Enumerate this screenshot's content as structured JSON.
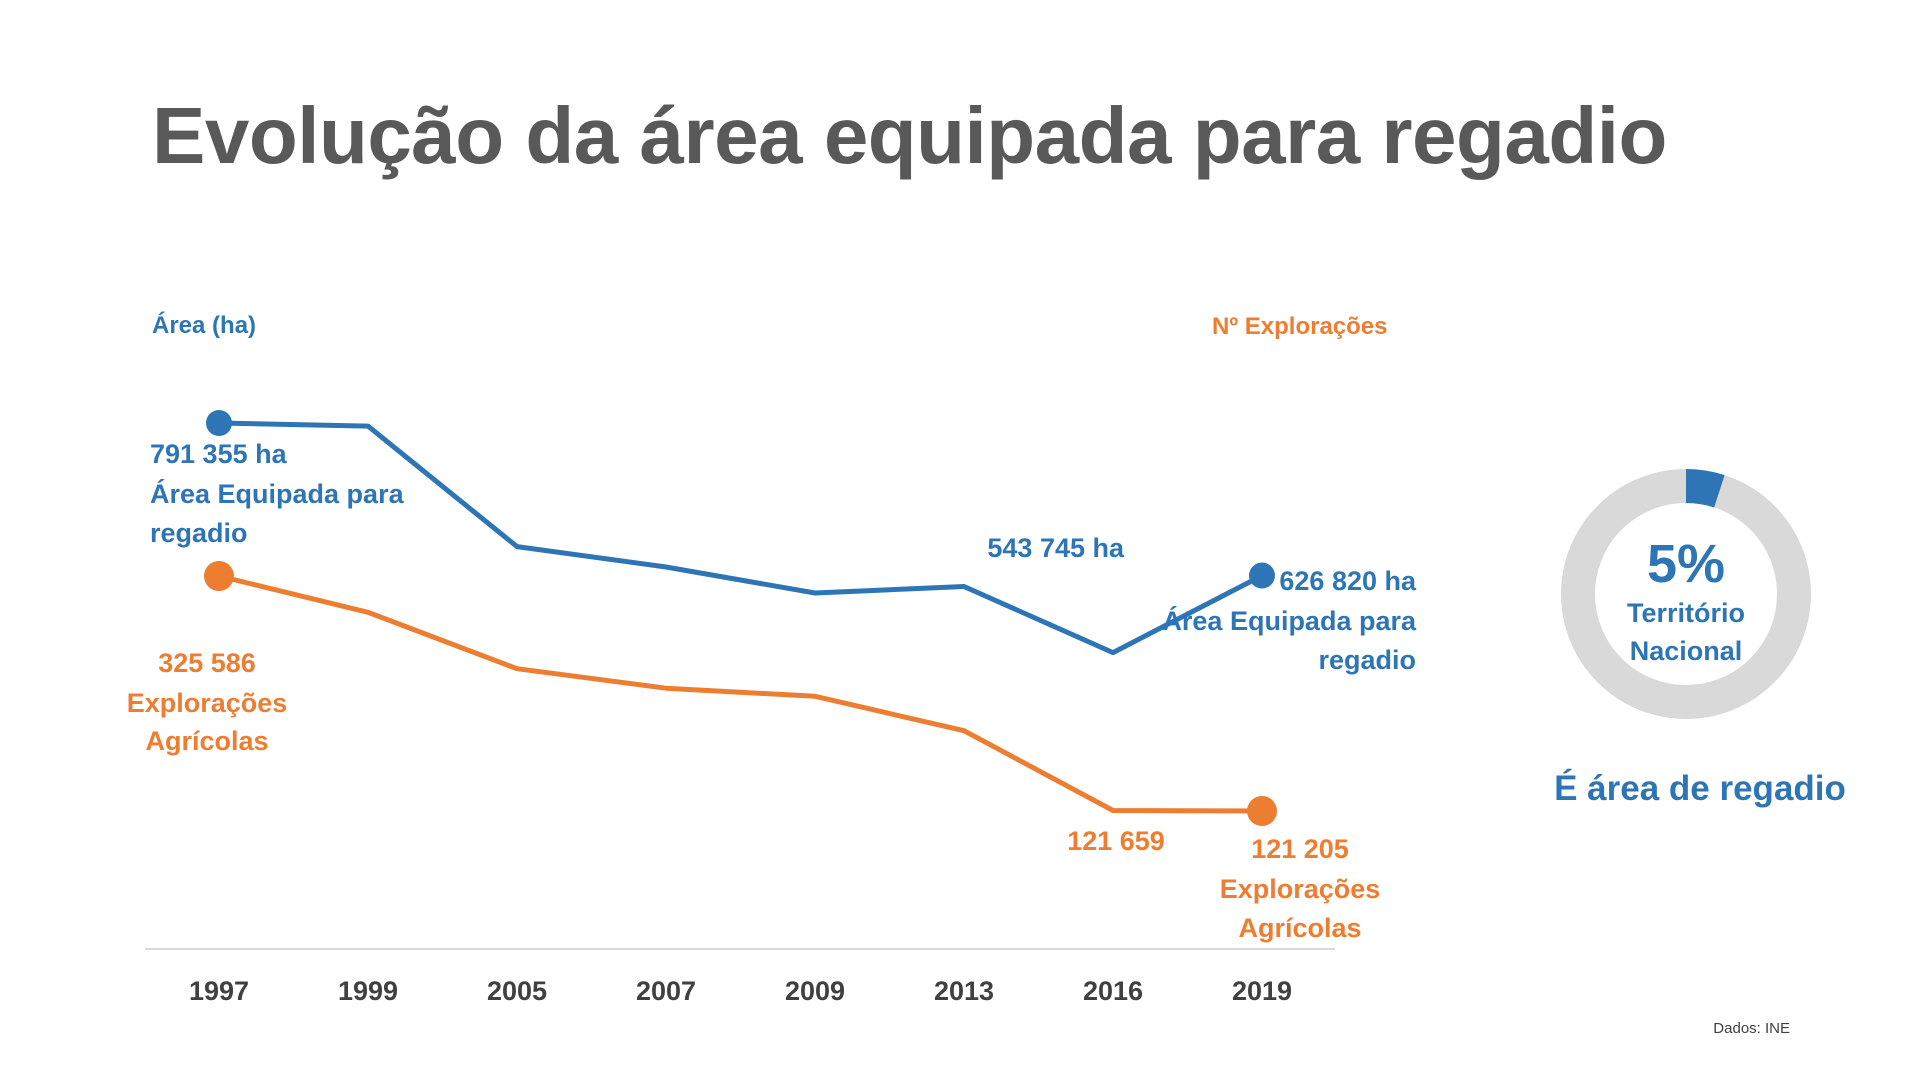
{
  "title": "Evolução da área equipada para regadio",
  "source": "Dados: INE",
  "colors": {
    "area": "#2E75B6",
    "exploracoes": "#ED7D31",
    "donut_bg": "#D9D9D9",
    "title": "#595959",
    "axis_text": "#404040"
  },
  "chart_data": {
    "type": "line",
    "categories": [
      "1997",
      "1999",
      "2005",
      "2007",
      "2009",
      "2013",
      "2016",
      "2019"
    ],
    "left_axis_label": "Área (ha)",
    "right_axis_label": "Nº Explorações",
    "grid": false,
    "series": [
      {
        "key": "area",
        "axis": "left",
        "values": [
          791355,
          788000,
          658000,
          636000,
          608000,
          615000,
          543745,
          626820
        ]
      },
      {
        "key": "exploracoes",
        "axis": "right",
        "values": [
          325586,
          294000,
          245000,
          228000,
          221000,
          191000,
          121659,
          121205
        ]
      }
    ],
    "annotations": {
      "area_start": [
        "791 355 ha",
        "Área Equipada para",
        "regadio"
      ],
      "area_mid": "543 745 ha",
      "area_end": [
        "626 820 ha",
        "Área Equipada para",
        "regadio"
      ],
      "expl_start": [
        "325 586",
        "Explorações",
        "Agrícolas"
      ],
      "expl_mid": "121 659",
      "expl_end": [
        "121 205",
        "Explorações",
        "Agrícolas"
      ]
    }
  },
  "donut": {
    "value_percent": 5,
    "value_label": "5%",
    "center_lines": [
      "Território",
      "Nacional"
    ],
    "caption": "É área de regadio"
  }
}
